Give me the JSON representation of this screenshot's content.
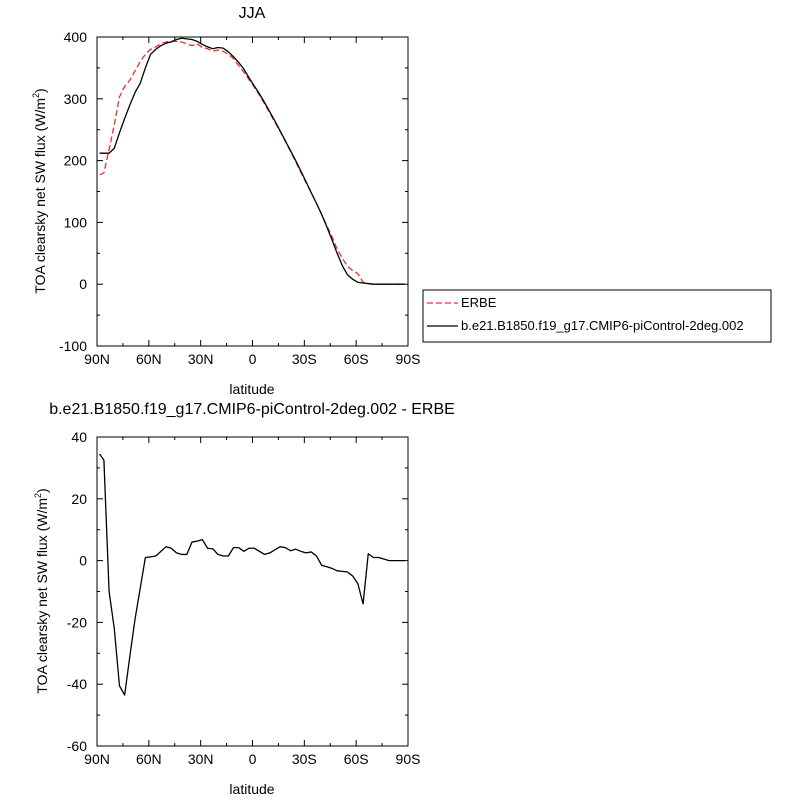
{
  "chart_data": [
    {
      "type": "line",
      "title": "JJA",
      "xlabel": "latitude",
      "ylabel": "TOA clearsky net SW flux (W/m",
      "ylabel_sup": "2",
      "ylabel_end": ")",
      "xlim": [
        90,
        -90
      ],
      "ylim": [
        -100,
        400
      ],
      "xticks": [
        90,
        60,
        30,
        0,
        -30,
        -60,
        -90
      ],
      "xtick_labels": [
        "90N",
        "60N",
        "30N",
        "0",
        "30S",
        "60S",
        "90S"
      ],
      "yticks": [
        -100,
        0,
        100,
        200,
        300,
        400
      ],
      "ytick_labels": [
        "-100",
        "0",
        "100",
        "200",
        "300",
        "400"
      ],
      "legend": {
        "placement": "right",
        "entries": [
          "ERBE",
          "b.e21.B1850.f19_g17.CMIP6-piControl-2deg.002"
        ]
      },
      "series": [
        {
          "name": "ERBE",
          "color": "#e8302f",
          "dash": "dashed",
          "x": [
            88.5,
            86,
            83,
            80,
            77,
            74,
            71,
            68,
            65,
            62,
            59,
            56,
            53,
            50,
            47,
            44,
            41,
            38,
            35,
            32,
            29,
            26,
            23,
            20,
            17,
            14,
            11,
            8,
            5,
            2,
            -1,
            -4,
            -7,
            -10,
            -13,
            -16,
            -19,
            -22,
            -25,
            -28,
            -31,
            -34,
            -37,
            -40,
            -43,
            -46,
            -49,
            -52,
            -55,
            -58,
            -61,
            -64,
            -67,
            -70,
            -73,
            -76,
            -79,
            -82,
            -85,
            -88
          ],
          "y": [
            177,
            180,
            218,
            258,
            303,
            320,
            330,
            345,
            360,
            372,
            380,
            384,
            389,
            392,
            393,
            393,
            392,
            389,
            386,
            389,
            383,
            381,
            377,
            379,
            377,
            372,
            365,
            354,
            343,
            331,
            319,
            306,
            292,
            277,
            262,
            247,
            231,
            215,
            198,
            181,
            164,
            148,
            131,
            113,
            95,
            77,
            57,
            42,
            29,
            22,
            17,
            3,
            1,
            0,
            0,
            0,
            0,
            0,
            0,
            0
          ]
        },
        {
          "name": "b.e21.B1850.f19_g17.CMIP6-piControl-2deg.002",
          "color": "#000000",
          "dash": "solid",
          "x": [
            88.5,
            86,
            83,
            80,
            77,
            74,
            71,
            68,
            65,
            62,
            59,
            56,
            53,
            50,
            47,
            44,
            41,
            38,
            35,
            32,
            29,
            26,
            23,
            20,
            17,
            14,
            11,
            8,
            5,
            2,
            -1,
            -4,
            -7,
            -10,
            -13,
            -16,
            -19,
            -22,
            -25,
            -28,
            -31,
            -34,
            -37,
            -40,
            -43,
            -46,
            -49,
            -52,
            -55,
            -58,
            -61,
            -64,
            -67,
            -70,
            -73,
            -76,
            -79,
            -82,
            -85,
            -88
          ],
          "y": [
            212,
            212,
            212,
            220,
            245,
            268,
            290,
            310,
            325,
            350,
            372,
            380,
            386,
            390,
            392,
            396,
            398,
            397,
            396,
            393,
            388,
            384,
            381,
            383,
            382,
            376,
            368,
            359,
            348,
            334,
            321,
            308,
            294,
            279,
            264,
            248,
            232,
            216,
            200,
            183,
            166,
            148,
            131,
            113,
            93,
            72,
            50,
            30,
            15,
            8,
            3,
            2,
            1,
            0,
            0,
            0,
            0,
            0,
            0,
            0
          ]
        }
      ]
    },
    {
      "type": "line",
      "title": "b.e21.B1850.f19_g17.CMIP6-piControl-2deg.002 - ERBE",
      "xlabel": "latitude",
      "ylabel": "TOA clearsky net SW flux (W/m",
      "ylabel_sup": "2",
      "ylabel_end": ")",
      "xlim": [
        90,
        -90
      ],
      "ylim": [
        -60,
        40
      ],
      "xticks": [
        90,
        60,
        30,
        0,
        -30,
        -60,
        -90
      ],
      "xtick_labels": [
        "90N",
        "60N",
        "30N",
        "0",
        "30S",
        "60S",
        "90S"
      ],
      "yticks": [
        -60,
        -40,
        -20,
        0,
        20,
        40
      ],
      "ytick_labels": [
        "-60",
        "-40",
        "-20",
        "0",
        "20",
        "40"
      ],
      "series": [
        {
          "color": "#000000",
          "dash": "solid",
          "x": [
            88.5,
            86,
            83,
            80,
            77,
            74,
            71,
            68,
            65,
            62,
            59,
            56,
            53,
            50,
            47,
            44,
            41,
            38,
            35,
            32,
            29,
            26,
            23,
            20,
            17,
            14,
            11,
            8,
            5,
            2,
            -1,
            -4,
            -7,
            -10,
            -13,
            -16,
            -19,
            -22,
            -25,
            -28,
            -31,
            -34,
            -37,
            -40,
            -43,
            -46,
            -49,
            -52,
            -55,
            -58,
            -61,
            -64,
            -67,
            -70,
            -73,
            -76,
            -79,
            -82,
            -85,
            -88
          ],
          "y": [
            34.5,
            32.5,
            -10,
            -22,
            -40.5,
            -43.5,
            -31,
            -19,
            -9,
            1,
            1.2,
            1.5,
            3,
            4.5,
            4,
            2.5,
            2,
            2,
            6,
            6.3,
            6.8,
            4,
            3.8,
            2,
            1.5,
            1.5,
            4.2,
            4.2,
            3,
            4,
            4,
            3,
            2,
            2.5,
            3.5,
            4.5,
            4.2,
            3.2,
            3.7,
            3,
            2.5,
            2.8,
            1.5,
            -1.5,
            -2,
            -2.5,
            -3.3,
            -3.5,
            -3.7,
            -5,
            -7.5,
            -14,
            2.2,
            1,
            1,
            0.5,
            0,
            0,
            0,
            0
          ]
        }
      ]
    }
  ]
}
